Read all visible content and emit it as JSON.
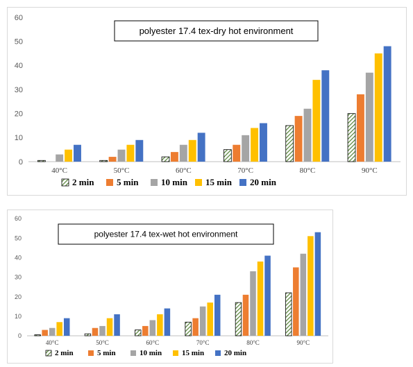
{
  "chart_data": [
    {
      "type": "bar",
      "title": "polyester 17.4 tex-dry hot environment",
      "categories": [
        "40°C",
        "50°C",
        "60°C",
        "70°C",
        "80°C",
        "90°C"
      ],
      "ylim": [
        0,
        60
      ],
      "yticks": [
        0,
        10,
        20,
        30,
        40,
        50,
        60
      ],
      "grid": false,
      "legend_position": "bottom",
      "series": [
        {
          "name": "2 min",
          "color": "#548235",
          "pattern": "hatch",
          "values": [
            0.5,
            0.5,
            2,
            5,
            15,
            20
          ]
        },
        {
          "name": "5 min",
          "color": "#ed7d31",
          "values": [
            0,
            2,
            4,
            7,
            19,
            28
          ]
        },
        {
          "name": "10 min",
          "color": "#a5a5a5",
          "values": [
            3,
            5,
            7,
            11,
            22,
            37
          ]
        },
        {
          "name": "15 min",
          "color": "#ffc000",
          "values": [
            5,
            7,
            9,
            14,
            34,
            45
          ]
        },
        {
          "name": "20 min",
          "color": "#4472c4",
          "values": [
            7,
            9,
            12,
            16,
            38,
            48
          ]
        }
      ]
    },
    {
      "type": "bar",
      "title": "polyester 17.4 tex-wet hot environment",
      "categories": [
        "40°C",
        "50°C",
        "60°C",
        "70°C",
        "80°C",
        "90°C"
      ],
      "ylim": [
        0,
        60
      ],
      "yticks": [
        0,
        10,
        20,
        30,
        40,
        50,
        60
      ],
      "grid": false,
      "legend_position": "bottom",
      "series": [
        {
          "name": "2 min",
          "color": "#548235",
          "pattern": "hatch",
          "values": [
            0.5,
            1,
            3,
            7,
            17,
            22
          ]
        },
        {
          "name": "5 min",
          "color": "#ed7d31",
          "values": [
            3,
            4,
            5,
            9,
            21,
            35
          ]
        },
        {
          "name": "10 min",
          "color": "#a5a5a5",
          "values": [
            4,
            5,
            8,
            15,
            33,
            42
          ]
        },
        {
          "name": "15 min",
          "color": "#ffc000",
          "values": [
            7,
            9,
            11,
            17,
            38,
            51
          ]
        },
        {
          "name": "20 min",
          "color": "#4472c4",
          "values": [
            9,
            11,
            14,
            21,
            41,
            53
          ]
        }
      ]
    }
  ]
}
